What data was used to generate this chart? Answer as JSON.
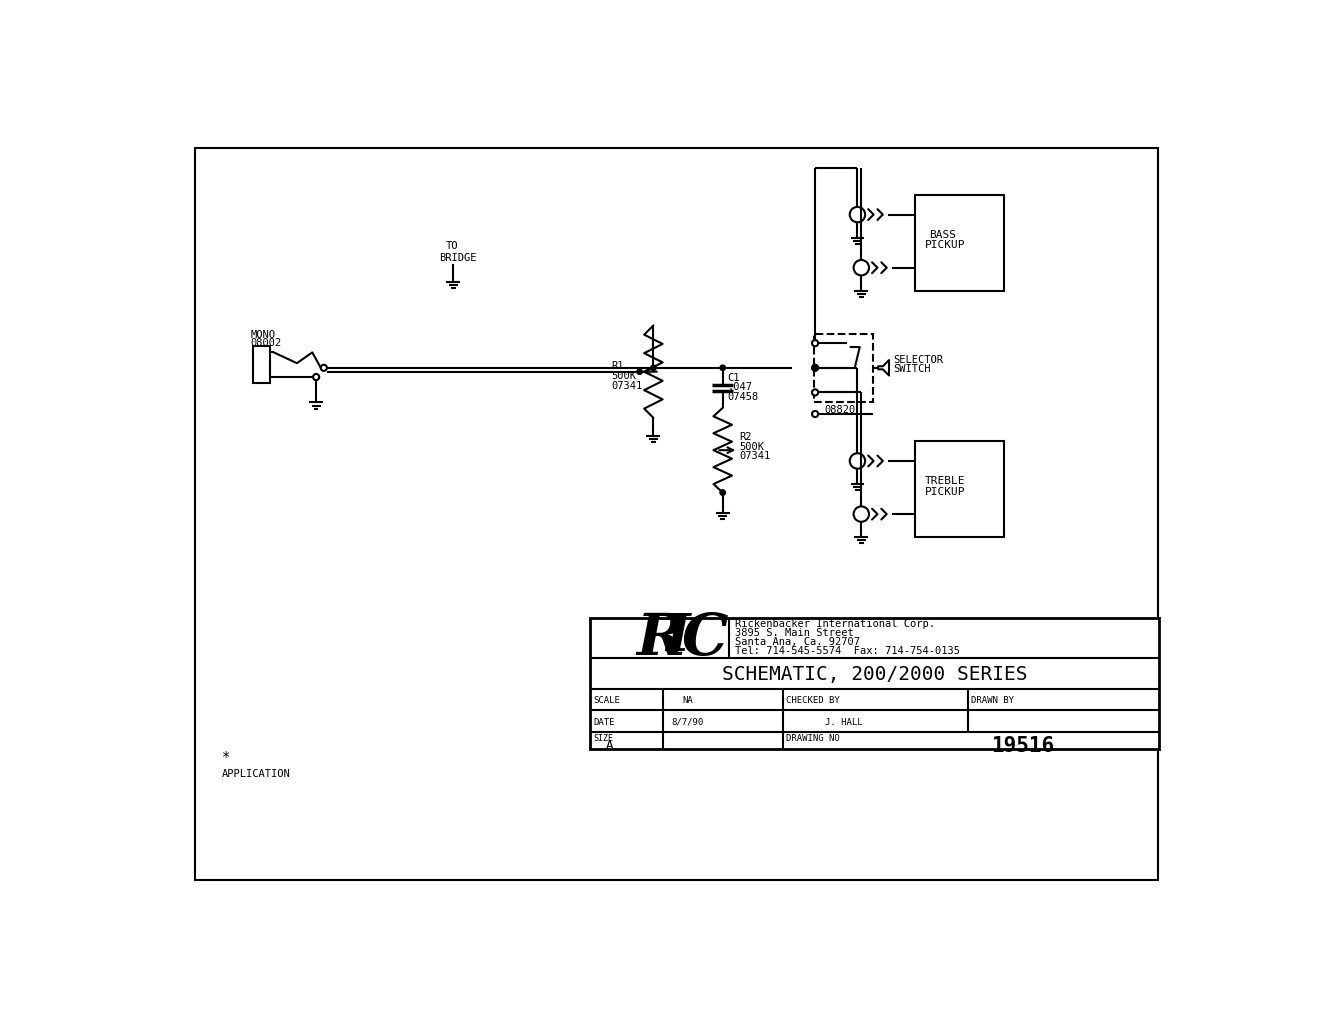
{
  "bg_color": "#ffffff",
  "line_color": "#000000",
  "title": "SCHEMATIC, 200/2000 SERIES",
  "company": "Rickenbacker International Corp.",
  "address1": "3895 S. Main Street",
  "address2": "Santa Ana, Ca. 92707",
  "tel": "Tel: 714-545-5574  Fax: 714-754-0135",
  "scale_label": "SCALE",
  "scale_val": "NA",
  "checked_label": "CHECKED BY",
  "checked_val": "J. HALL",
  "drawn_label": "DRAWN BY",
  "date_label": "DATE",
  "date_val": "8/7/90",
  "size_label": "SIZE",
  "size_val": "A",
  "drawing_no_label": "DRAWING NO",
  "drawing_no_val": "19516",
  "note_star": "*",
  "note_app": "APPLICATION",
  "mono_label1": "MONO",
  "mono_label2": "08002",
  "bridge_label1": "TO",
  "bridge_label2": "BRIDGE",
  "r1_label1": "R1",
  "r1_label2": "500K",
  "r1_label3": "07341",
  "r2_label1": "R2",
  "r2_label2": "500K",
  "r2_label3": "07341",
  "c1_label1": "C1",
  "c1_label2": ".047",
  "c1_label3": "07458",
  "sw_label1": "SELECTOR",
  "sw_label2": "SWITCH",
  "sw_part": "08820",
  "bass_label1": "BASS",
  "bass_label2": "PICKUP",
  "treble_label1": "TREBLE",
  "treble_label2": "PICKUP"
}
